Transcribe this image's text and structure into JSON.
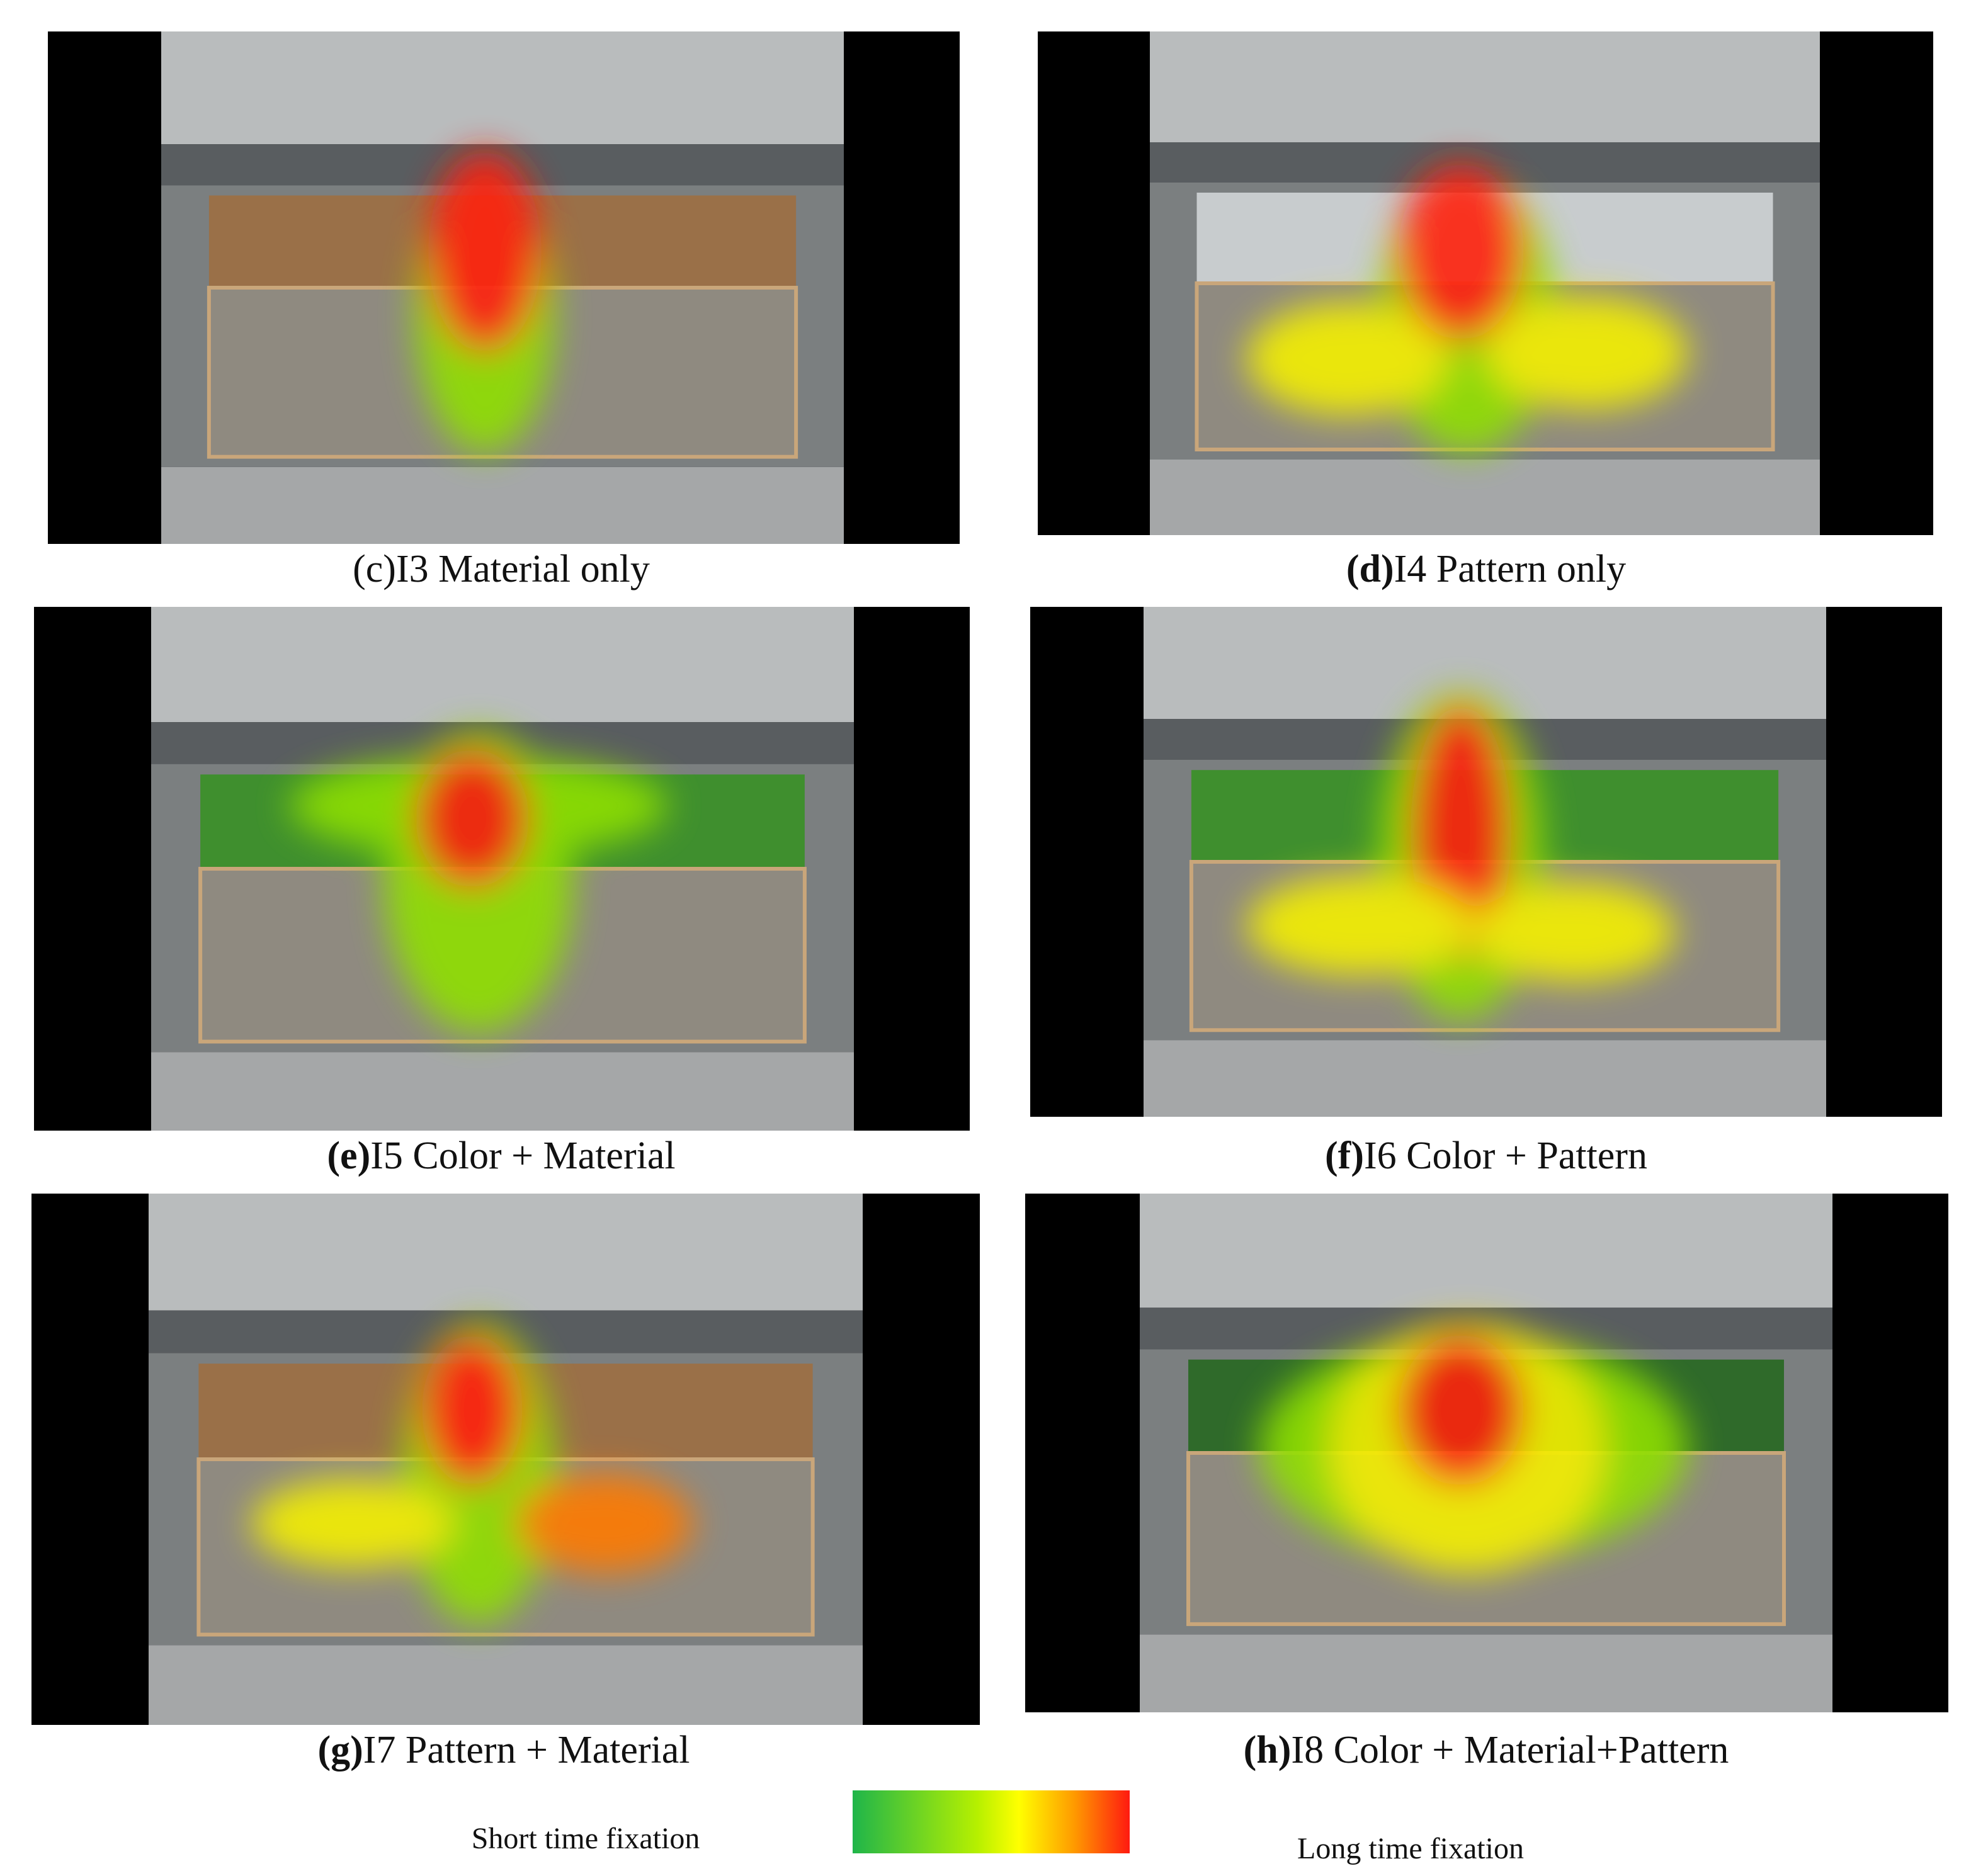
{
  "panels": [
    {
      "label": "(c)",
      "label_bold": false,
      "caption": "I3 Material only"
    },
    {
      "label": "(d)",
      "label_bold": true,
      "caption": "I4 Pattern only"
    },
    {
      "label": "(e)",
      "label_bold": true,
      "caption": "I5 Color + Material"
    },
    {
      "label": "(f)",
      "label_bold": true,
      "caption": "I6 Color + Pattern"
    },
    {
      "label": "(g)",
      "label_bold": true,
      "caption": "I7 Pattern + Material"
    },
    {
      "label": "(h)",
      "label_bold": true,
      "caption": "I8 Color + Material+Pattern"
    }
  ],
  "legend": {
    "short": "Short time fixation",
    "long": "Long time fixation"
  }
}
